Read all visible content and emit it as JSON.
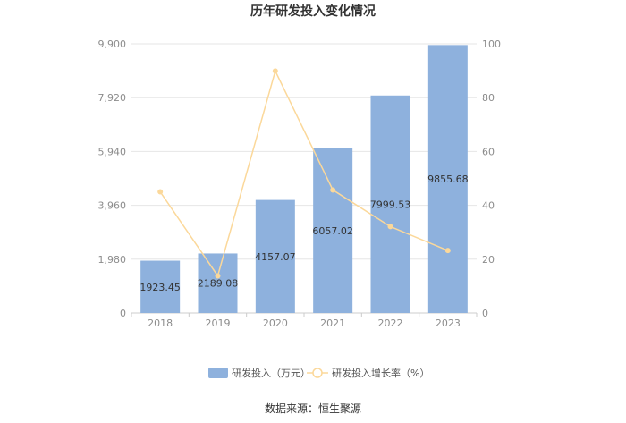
{
  "chart_data": {
    "type": "bar",
    "title": "历年研发投入变化情况",
    "categories": [
      "2018",
      "2019",
      "2020",
      "2021",
      "2022",
      "2023"
    ],
    "series": [
      {
        "name": "研发投入（万元）",
        "type": "bar",
        "axis": "left",
        "color": "#8eb1dd",
        "values": [
          1923.45,
          2189.08,
          4157.07,
          6057.02,
          7999.53,
          9855.68
        ],
        "labels": [
          "1923.45",
          "2189.08",
          "4157.07",
          "6057.02",
          "7999.53",
          "9855.68"
        ]
      },
      {
        "name": "研发投入增长率（%）",
        "type": "line",
        "axis": "right",
        "color": "#fbd89a",
        "values": [
          45,
          13.8,
          89.9,
          45.7,
          32.1,
          23.2
        ]
      }
    ],
    "y_left": {
      "ylim": [
        0,
        9900
      ],
      "ticks": [
        0,
        1980,
        3960,
        5940,
        7920,
        9900
      ],
      "tick_labels": [
        "0",
        "1,980",
        "3,960",
        "5,940",
        "7,920",
        "9,900"
      ]
    },
    "y_right": {
      "ylim": [
        0,
        100
      ],
      "ticks": [
        0,
        20,
        40,
        60,
        80,
        100
      ],
      "tick_labels": [
        "0",
        "20",
        "40",
        "60",
        "80",
        "100"
      ]
    },
    "grid": true,
    "legend_position": "bottom"
  },
  "source": "数据来源：恒生聚源"
}
